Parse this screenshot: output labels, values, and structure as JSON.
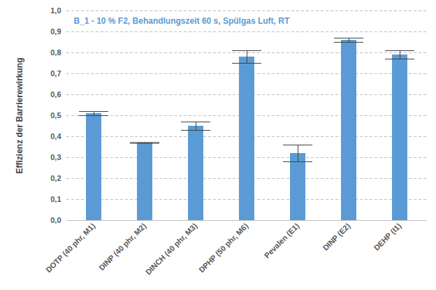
{
  "chart_data": {
    "type": "bar",
    "title": "B_1 - 10 % F2, Behandlungszeit 60 s, Spülgas Luft, RT",
    "y_label": "Effizienz der Barrierewirkung",
    "categories": [
      "DOTP (40 phr, M1)",
      "DINP (40 phr, M2)",
      "DINCH (40 phr, M3)",
      "DPHP (50 phr, M6)",
      "Pevalen (E1)",
      "DINP (E2)",
      "DEHP (I1)"
    ],
    "values": [
      0.51,
      0.37,
      0.45,
      0.78,
      0.32,
      0.86,
      0.79
    ],
    "errors": [
      0.01,
      0.002,
      0.02,
      0.03,
      0.04,
      0.01,
      0.02
    ],
    "color": "#5b9bd5",
    "ylim": [
      0,
      1
    ],
    "yticks": [
      {
        "value": 0,
        "label": "0,0"
      },
      {
        "value": 0.1,
        "label": "0,1"
      },
      {
        "value": 0.2,
        "label": "0,2"
      },
      {
        "value": 0.3,
        "label": "0,3"
      },
      {
        "value": 0.4,
        "label": "0,4"
      },
      {
        "value": 0.5,
        "label": "0,5"
      },
      {
        "value": 0.6,
        "label": "0,6"
      },
      {
        "value": 0.7,
        "label": "0,7"
      },
      {
        "value": 0.8,
        "label": "0,8"
      },
      {
        "value": 0.9,
        "label": "0,9"
      },
      {
        "value": 1,
        "label": "1,0"
      }
    ],
    "grid": true
  }
}
